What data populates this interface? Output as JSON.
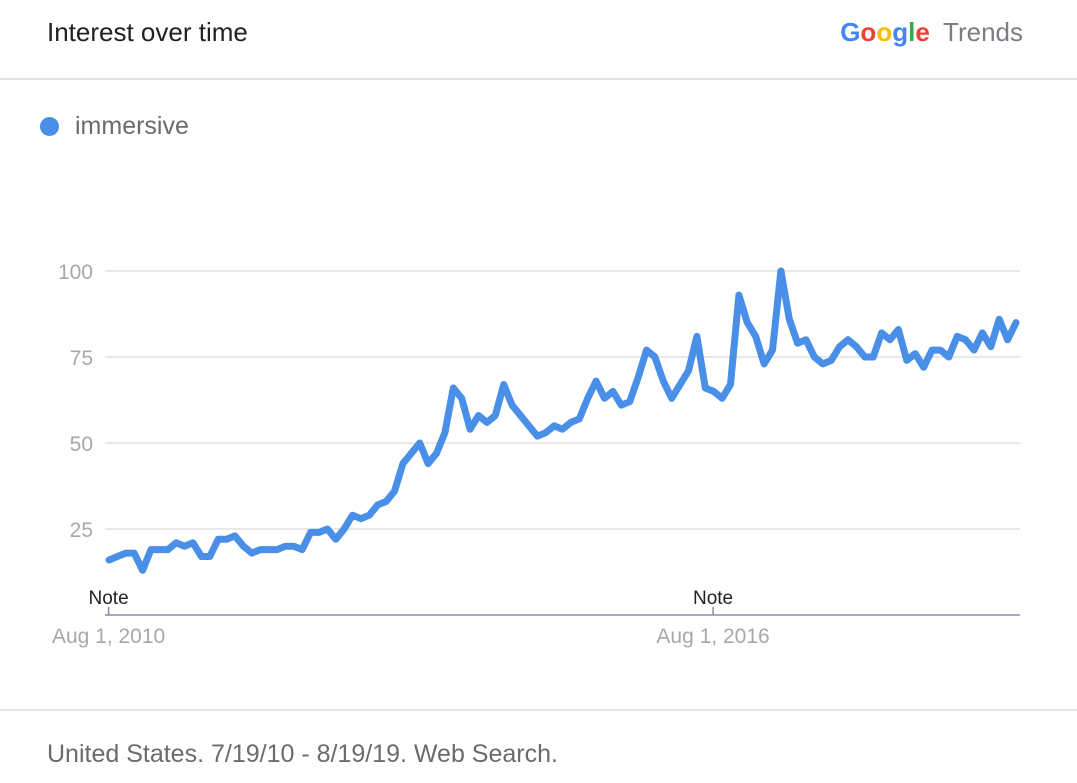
{
  "header": {
    "title": "Interest over time",
    "brand_letters": [
      "G",
      "o",
      "o",
      "g",
      "l",
      "e"
    ],
    "brand_letter_colors": [
      "#4285f4",
      "#ea4335",
      "#fbbc05",
      "#4285f4",
      "#34a853",
      "#ea4335"
    ],
    "brand_suffix": "Trends"
  },
  "legend": {
    "label": "immersive",
    "color": "#4a8fe7"
  },
  "footer": {
    "text": "United States. 7/19/10 - 8/19/19. Web Search."
  },
  "chart_data": {
    "type": "line",
    "title": "",
    "xlabel": "",
    "ylabel": "",
    "ylim": [
      0,
      100
    ],
    "yticks": [
      25,
      50,
      75,
      100
    ],
    "grid": true,
    "legend_position": "top-left",
    "x_range": [
      "2010-07-19",
      "2019-08-19"
    ],
    "x_ticks": [
      {
        "date": "2010-08-01",
        "label": "Aug 1, 2010"
      },
      {
        "date": "2016-08-01",
        "label": "Aug 1, 2016"
      }
    ],
    "annotations": [
      {
        "date": "2010-08-01",
        "label": "Note"
      },
      {
        "date": "2016-08-01",
        "label": "Note"
      }
    ],
    "series": [
      {
        "name": "immersive",
        "color": "#4a8fe7",
        "values": [
          16,
          17,
          18,
          18,
          13,
          19,
          19,
          19,
          21,
          20,
          21,
          17,
          17,
          22,
          22,
          23,
          20,
          18,
          19,
          19,
          19,
          20,
          20,
          19,
          24,
          24,
          25,
          22,
          25,
          29,
          28,
          29,
          32,
          33,
          36,
          44,
          47,
          50,
          44,
          47,
          53,
          66,
          63,
          54,
          58,
          56,
          58,
          67,
          61,
          58,
          55,
          52,
          53,
          55,
          54,
          56,
          57,
          63,
          68,
          63,
          65,
          61,
          62,
          69,
          77,
          75,
          68,
          63,
          67,
          71,
          81,
          66,
          65,
          63,
          67,
          93,
          85,
          81,
          73,
          77,
          100,
          86,
          79,
          80,
          75,
          73,
          74,
          78,
          80,
          78,
          75,
          75,
          82,
          80,
          83,
          74,
          76,
          72,
          77,
          77,
          75,
          81,
          80,
          77,
          82,
          78,
          86,
          80,
          85
        ]
      }
    ]
  }
}
